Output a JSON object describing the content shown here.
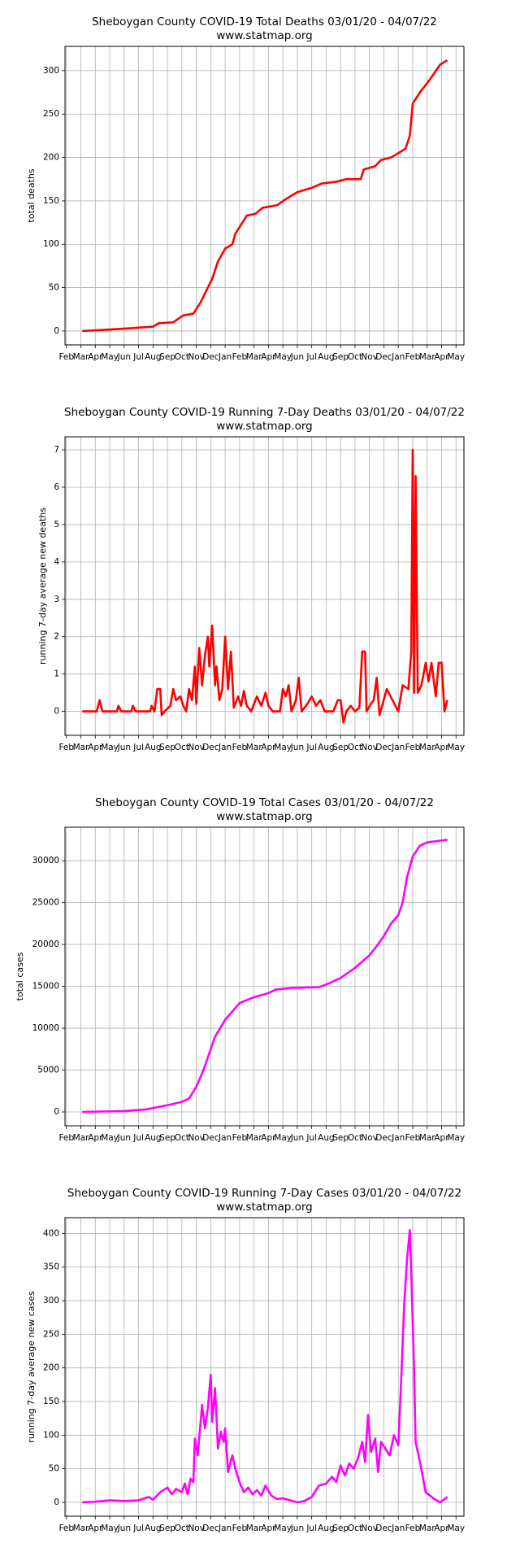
{
  "chart_data": [
    {
      "type": "line",
      "title": "Sheboygan County COVID-19 Total Deaths 03/01/20 - 04/07/22",
      "subtitle": "www.statmap.org",
      "ylabel": "total deaths",
      "color": "#ff0000",
      "grid": true,
      "xlim": [
        -0.1,
        27.55
      ],
      "ylim": [
        -16,
        328
      ],
      "yticks": [
        0,
        50,
        100,
        150,
        200,
        250,
        300
      ],
      "xticks": [
        {
          "value": 0,
          "label": "Feb"
        },
        {
          "value": 1,
          "label": "Mar"
        },
        {
          "value": 2,
          "label": "Apr"
        },
        {
          "value": 3,
          "label": "May"
        },
        {
          "value": 4,
          "label": "Jun"
        },
        {
          "value": 5,
          "label": "Jul"
        },
        {
          "value": 6,
          "label": "Aug"
        },
        {
          "value": 7,
          "label": "Sep"
        },
        {
          "value": 8,
          "label": "Oct"
        },
        {
          "value": 9,
          "label": "Nov"
        },
        {
          "value": 10,
          "label": "Dec"
        },
        {
          "value": 11,
          "label": "Jan"
        },
        {
          "value": 12,
          "label": "Feb"
        },
        {
          "value": 13,
          "label": "Mar"
        },
        {
          "value": 14,
          "label": "Apr"
        },
        {
          "value": 15,
          "label": "May"
        },
        {
          "value": 16,
          "label": "Jun"
        },
        {
          "value": 17,
          "label": "Jul"
        },
        {
          "value": 18,
          "label": "Aug"
        },
        {
          "value": 19,
          "label": "Sep"
        },
        {
          "value": 20,
          "label": "Oct"
        },
        {
          "value": 21,
          "label": "Nov"
        },
        {
          "value": 22,
          "label": "Dec"
        },
        {
          "value": 23,
          "label": "Jan"
        },
        {
          "value": 24,
          "label": "Feb"
        },
        {
          "value": 25,
          "label": "Mar"
        },
        {
          "value": 26,
          "label": "Apr"
        },
        {
          "value": 27,
          "label": "May"
        }
      ],
      "x": [
        1.1,
        2.3,
        4.3,
        6,
        6.4,
        7.4,
        8.1,
        8.8,
        9.3,
        9.8,
        10.1,
        10.5,
        11,
        11.5,
        11.7,
        12.2,
        12.5,
        13.1,
        13.6,
        14.6,
        15.3,
        16,
        17,
        17.7,
        18.7,
        19.4,
        20.4,
        20.6,
        21.4,
        21.8,
        22.5,
        23,
        23.5,
        23.8,
        24,
        24.5,
        25.2,
        25.9,
        26.4
      ],
      "values": [
        0,
        1,
        3,
        5,
        9,
        10,
        18,
        20,
        33,
        50,
        60,
        80,
        95,
        100,
        112,
        125,
        133,
        135,
        142,
        145,
        153,
        160,
        165,
        170,
        172,
        175,
        175,
        186,
        190,
        197,
        200,
        205,
        210,
        225,
        262,
        275,
        290,
        307,
        312
      ]
    },
    {
      "type": "line",
      "title": "Sheboygan County COVID-19 Running 7-Day Deaths 03/01/20 - 04/07/22",
      "subtitle": "www.statmap.org",
      "ylabel": "running 7-day average new deaths",
      "color": "#ff0000",
      "grid": true,
      "xlim": [
        -0.1,
        27.55
      ],
      "ylim": [
        -0.64,
        7.35
      ],
      "yticks": [
        0,
        1,
        2,
        3,
        4,
        5,
        6,
        7
      ],
      "xticks": [
        {
          "value": 0,
          "label": "Feb"
        },
        {
          "value": 1,
          "label": "Mar"
        },
        {
          "value": 2,
          "label": "Apr"
        },
        {
          "value": 3,
          "label": "May"
        },
        {
          "value": 4,
          "label": "Jun"
        },
        {
          "value": 5,
          "label": "Jul"
        },
        {
          "value": 6,
          "label": "Aug"
        },
        {
          "value": 7,
          "label": "Sep"
        },
        {
          "value": 8,
          "label": "Oct"
        },
        {
          "value": 9,
          "label": "Nov"
        },
        {
          "value": 10,
          "label": "Dec"
        },
        {
          "value": 11,
          "label": "Jan"
        },
        {
          "value": 12,
          "label": "Feb"
        },
        {
          "value": 13,
          "label": "Mar"
        },
        {
          "value": 14,
          "label": "Apr"
        },
        {
          "value": 15,
          "label": "May"
        },
        {
          "value": 16,
          "label": "Jun"
        },
        {
          "value": 17,
          "label": "Jul"
        },
        {
          "value": 18,
          "label": "Aug"
        },
        {
          "value": 19,
          "label": "Sep"
        },
        {
          "value": 20,
          "label": "Oct"
        },
        {
          "value": 21,
          "label": "Nov"
        },
        {
          "value": 22,
          "label": "Dec"
        },
        {
          "value": 23,
          "label": "Jan"
        },
        {
          "value": 24,
          "label": "Feb"
        },
        {
          "value": 25,
          "label": "Mar"
        },
        {
          "value": 26,
          "label": "Apr"
        },
        {
          "value": 27,
          "label": "May"
        }
      ],
      "x": [
        1.1,
        2.1,
        2.3,
        2.5,
        3.5,
        3.6,
        3.8,
        4.5,
        4.6,
        4.8,
        5.8,
        5.9,
        6.1,
        6.3,
        6.5,
        6.6,
        6.8,
        7.2,
        7.4,
        7.6,
        7.9,
        8.1,
        8.3,
        8.5,
        8.7,
        8.9,
        9.0,
        9.2,
        9.4,
        9.6,
        9.8,
        9.9,
        10.1,
        10.3,
        10.4,
        10.6,
        10.8,
        11.0,
        11.2,
        11.4,
        11.6,
        11.9,
        12.1,
        12.3,
        12.5,
        12.8,
        13.2,
        13.5,
        13.8,
        14,
        14.3,
        14.8,
        15.0,
        15.2,
        15.4,
        15.6,
        15.9,
        16.1,
        16.3,
        16.7,
        17,
        17.3,
        17.6,
        17.9,
        18.5,
        18.8,
        19.0,
        19.2,
        19.4,
        19.7,
        20,
        20.3,
        20.5,
        20.7,
        20.8,
        21.1,
        21.3,
        21.5,
        21.7,
        22.2,
        22.6,
        23,
        23.3,
        23.7,
        23.9,
        24.0,
        24.1,
        24.2,
        24.35,
        24.6,
        24.9,
        25.1,
        25.3,
        25.6,
        25.8,
        26.0,
        26.2,
        26.4
      ],
      "values": [
        0,
        0,
        0.3,
        0,
        0,
        0.15,
        0,
        0,
        0.15,
        0,
        0,
        0.15,
        0,
        0.6,
        0.6,
        -0.1,
        0,
        0.15,
        0.6,
        0.3,
        0.4,
        0.15,
        0,
        0.6,
        0.3,
        1.2,
        0.2,
        1.7,
        0.7,
        1.5,
        2.0,
        1.2,
        2.3,
        0.7,
        1.2,
        0.3,
        0.6,
        2.0,
        0.6,
        1.6,
        0.1,
        0.4,
        0.15,
        0.55,
        0.15,
        0,
        0.4,
        0.15,
        0.5,
        0.15,
        0,
        0,
        0.6,
        0.4,
        0.7,
        0,
        0.3,
        0.9,
        0,
        0.2,
        0.4,
        0.15,
        0.3,
        0,
        0,
        0.3,
        0.3,
        -0.3,
        0,
        0.15,
        0,
        0.1,
        1.6,
        1.6,
        0,
        0.2,
        0.3,
        0.9,
        -0.1,
        0.6,
        0.3,
        0,
        0.7,
        0.6,
        1.6,
        7,
        0.5,
        6.3,
        0.5,
        0.7,
        1.3,
        0.8,
        1.3,
        0.4,
        1.3,
        1.3,
        0,
        0.3
      ]
    },
    {
      "type": "line",
      "title": "Sheboygan County COVID-19 Total Cases 03/01/20 - 04/07/22",
      "subtitle": "www.statmap.org",
      "ylabel": "total cases",
      "color": "#ff00ff",
      "grid": true,
      "xlim": [
        -0.1,
        27.55
      ],
      "ylim": [
        -1650,
        34000
      ],
      "yticks": [
        0,
        5000,
        10000,
        15000,
        20000,
        25000,
        30000
      ],
      "xticks": [
        {
          "value": 0,
          "label": "Feb"
        },
        {
          "value": 1,
          "label": "Mar"
        },
        {
          "value": 2,
          "label": "Apr"
        },
        {
          "value": 3,
          "label": "May"
        },
        {
          "value": 4,
          "label": "Jun"
        },
        {
          "value": 5,
          "label": "Jul"
        },
        {
          "value": 6,
          "label": "Aug"
        },
        {
          "value": 7,
          "label": "Sep"
        },
        {
          "value": 8,
          "label": "Oct"
        },
        {
          "value": 9,
          "label": "Nov"
        },
        {
          "value": 10,
          "label": "Dec"
        },
        {
          "value": 11,
          "label": "Jan"
        },
        {
          "value": 12,
          "label": "Feb"
        },
        {
          "value": 13,
          "label": "Mar"
        },
        {
          "value": 14,
          "label": "Apr"
        },
        {
          "value": 15,
          "label": "May"
        },
        {
          "value": 16,
          "label": "Jun"
        },
        {
          "value": 17,
          "label": "Jul"
        },
        {
          "value": 18,
          "label": "Aug"
        },
        {
          "value": 19,
          "label": "Sep"
        },
        {
          "value": 20,
          "label": "Oct"
        },
        {
          "value": 21,
          "label": "Nov"
        },
        {
          "value": 22,
          "label": "Dec"
        },
        {
          "value": 23,
          "label": "Jan"
        },
        {
          "value": 24,
          "label": "Feb"
        },
        {
          "value": 25,
          "label": "Mar"
        },
        {
          "value": 26,
          "label": "Apr"
        },
        {
          "value": 27,
          "label": "May"
        }
      ],
      "x": [
        1.1,
        4,
        5.5,
        7,
        8,
        8.5,
        9,
        9.5,
        10,
        10.3,
        11,
        11.5,
        12,
        13,
        14,
        14.5,
        15.5,
        17.5,
        18,
        19,
        20,
        21,
        21.5,
        22,
        22.5,
        23,
        23.3,
        23.6,
        24,
        24.5,
        25,
        26.4
      ],
      "values": [
        0,
        100,
        300,
        800,
        1200,
        1600,
        3000,
        5000,
        7500,
        9000,
        11000,
        12000,
        13000,
        13700,
        14200,
        14600,
        14800,
        14900,
        15200,
        16000,
        17200,
        18700,
        19800,
        21000,
        22500,
        23500,
        25000,
        28000,
        30500,
        31800,
        32200,
        32500
      ]
    },
    {
      "type": "line",
      "title": "Sheboygan County COVID-19 Running 7-Day Cases 03/01/20 - 04/07/22",
      "subtitle": "www.statmap.org",
      "ylabel": "running 7-day average new cases",
      "color": "#ff00ff",
      "grid": true,
      "xlim": [
        -0.1,
        27.55
      ],
      "ylim": [
        -20.6,
        423.5
      ],
      "yticks": [
        0,
        50,
        100,
        150,
        200,
        250,
        300,
        350,
        400
      ],
      "xticks": [
        {
          "value": 0,
          "label": "Feb"
        },
        {
          "value": 1,
          "label": "Mar"
        },
        {
          "value": 2,
          "label": "Apr"
        },
        {
          "value": 3,
          "label": "May"
        },
        {
          "value": 4,
          "label": "Jun"
        },
        {
          "value": 5,
          "label": "Jul"
        },
        {
          "value": 6,
          "label": "Aug"
        },
        {
          "value": 7,
          "label": "Sep"
        },
        {
          "value": 8,
          "label": "Oct"
        },
        {
          "value": 9,
          "label": "Nov"
        },
        {
          "value": 10,
          "label": "Dec"
        },
        {
          "value": 11,
          "label": "Jan"
        },
        {
          "value": 12,
          "label": "Feb"
        },
        {
          "value": 13,
          "label": "Mar"
        },
        {
          "value": 14,
          "label": "Apr"
        },
        {
          "value": 15,
          "label": "May"
        },
        {
          "value": 16,
          "label": "Jun"
        },
        {
          "value": 17,
          "label": "Jul"
        },
        {
          "value": 18,
          "label": "Aug"
        },
        {
          "value": 19,
          "label": "Sep"
        },
        {
          "value": 20,
          "label": "Oct"
        },
        {
          "value": 21,
          "label": "Nov"
        },
        {
          "value": 22,
          "label": "Dec"
        },
        {
          "value": 23,
          "label": "Jan"
        },
        {
          "value": 24,
          "label": "Feb"
        },
        {
          "value": 25,
          "label": "Mar"
        },
        {
          "value": 26,
          "label": "Apr"
        },
        {
          "value": 27,
          "label": "May"
        }
      ],
      "x": [
        1.1,
        2,
        3,
        4,
        5,
        5.7,
        6,
        6.5,
        7,
        7.3,
        7.6,
        8,
        8.2,
        8.4,
        8.6,
        8.8,
        8.9,
        9.1,
        9.3,
        9.4,
        9.6,
        9.8,
        10.0,
        10.1,
        10.3,
        10.5,
        10.7,
        10.9,
        11.0,
        11.2,
        11.5,
        11.7,
        12,
        12.3,
        12.6,
        12.9,
        13.2,
        13.5,
        13.8,
        14.2,
        14.6,
        15,
        15.5,
        16,
        16.5,
        17,
        17.5,
        18,
        18.4,
        18.7,
        19,
        19.3,
        19.6,
        19.9,
        20.2,
        20.5,
        20.7,
        20.9,
        21.1,
        21.4,
        21.6,
        21.8,
        22.1,
        22.4,
        22.7,
        23,
        23.2,
        23.4,
        23.6,
        23.8,
        23.9,
        24.1,
        24.2,
        24.5,
        24.9,
        25.5,
        25.9,
        26.4
      ],
      "values": [
        0,
        1,
        3,
        2,
        3,
        8,
        4,
        15,
        22,
        12,
        20,
        15,
        28,
        12,
        35,
        30,
        95,
        70,
        120,
        145,
        110,
        140,
        190,
        120,
        170,
        80,
        105,
        90,
        110,
        45,
        70,
        50,
        30,
        15,
        22,
        12,
        18,
        10,
        25,
        10,
        5,
        6,
        3,
        0,
        2,
        8,
        25,
        28,
        38,
        30,
        55,
        40,
        58,
        50,
        65,
        90,
        60,
        130,
        75,
        95,
        45,
        90,
        80,
        70,
        100,
        85,
        180,
        290,
        360,
        405,
        340,
        195,
        90,
        60,
        15,
        5,
        0,
        8
      ]
    }
  ]
}
